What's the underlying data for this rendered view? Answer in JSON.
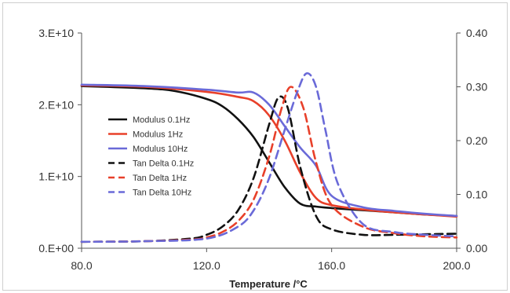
{
  "chart_data": {
    "type": "line",
    "title": "",
    "xlabel": "Temperature /°C",
    "ylabel": "",
    "y2label": "",
    "xlim": [
      80,
      200
    ],
    "ylim": [
      0,
      30000000000
    ],
    "y2lim": [
      0,
      0.4
    ],
    "grid": false,
    "legend_position": "center-left",
    "x_ticks": [
      {
        "value": 80,
        "label": "80.0"
      },
      {
        "value": 120,
        "label": "120.0"
      },
      {
        "value": 160,
        "label": "160.0"
      },
      {
        "value": 200,
        "label": "200.0"
      }
    ],
    "y_ticks": [
      {
        "value": 0,
        "label": "0.E+00"
      },
      {
        "value": 10000000000,
        "label": "1.E+10"
      },
      {
        "value": 20000000000,
        "label": "2.E+10"
      },
      {
        "value": 30000000000,
        "label": "3.E+10"
      }
    ],
    "y2_ticks": [
      {
        "value": 0,
        "label": "0.00"
      },
      {
        "value": 0.1,
        "label": "0.10"
      },
      {
        "value": 0.2,
        "label": "0.20"
      },
      {
        "value": 0.3,
        "label": "0.30"
      },
      {
        "value": 0.4,
        "label": "0.40"
      }
    ],
    "series": [
      {
        "name": "Modulus 0.1Hz",
        "axis": "left",
        "color": "#111111",
        "dashed": false,
        "x": [
          80,
          100,
          110,
          120,
          125,
          130,
          135,
          140,
          145,
          150,
          155,
          160,
          170,
          180,
          190,
          200
        ],
        "y": [
          22600000000,
          22300000000,
          21900000000,
          20800000000,
          19800000000,
          18000000000,
          15500000000,
          12000000000,
          8500000000,
          6200000000,
          5800000000,
          5600000000,
          5300000000,
          5000000000,
          4700000000,
          4500000000
        ]
      },
      {
        "name": "Modulus 1Hz",
        "axis": "left",
        "color": "#e8402a",
        "dashed": false,
        "x": [
          80,
          100,
          120,
          130,
          135,
          140,
          145,
          150,
          155,
          160,
          170,
          180,
          190,
          200
        ],
        "y": [
          22700000000,
          22500000000,
          21800000000,
          21100000000,
          20500000000,
          18500000000,
          15000000000,
          10500000000,
          7000000000,
          6000000000,
          5400000000,
          5000000000,
          4700000000,
          4400000000
        ]
      },
      {
        "name": "Modulus 10Hz",
        "axis": "left",
        "color": "#6a6ad8",
        "dashed": false,
        "x": [
          80,
          100,
          120,
          130,
          135,
          140,
          145,
          150,
          155,
          160,
          170,
          180,
          190,
          200
        ],
        "y": [
          22800000000,
          22600000000,
          22100000000,
          21700000000,
          21700000000,
          20000000000,
          17000000000,
          14000000000,
          11500000000,
          7300000000,
          5700000000,
          5200000000,
          4800000000,
          4500000000
        ]
      },
      {
        "name": "Tan Delta 0.1Hz",
        "axis": "right",
        "color": "#111111",
        "dashed": true,
        "x": [
          80,
          100,
          115,
          120,
          125,
          130,
          135,
          140,
          143,
          146,
          150,
          155,
          160,
          170,
          180,
          190,
          200
        ],
        "y": [
          0.012,
          0.013,
          0.018,
          0.025,
          0.04,
          0.07,
          0.13,
          0.23,
          0.28,
          0.26,
          0.15,
          0.06,
          0.035,
          0.025,
          0.025,
          0.026,
          0.027
        ]
      },
      {
        "name": "Tan Delta 1Hz",
        "axis": "right",
        "color": "#e8402a",
        "dashed": true,
        "x": [
          80,
          100,
          115,
          120,
          125,
          130,
          135,
          140,
          144,
          147,
          151,
          155,
          160,
          170,
          180,
          190,
          200
        ],
        "y": [
          0.012,
          0.013,
          0.016,
          0.02,
          0.03,
          0.05,
          0.09,
          0.17,
          0.26,
          0.3,
          0.26,
          0.16,
          0.08,
          0.04,
          0.028,
          0.022,
          0.02
        ]
      },
      {
        "name": "Tan Delta 10Hz",
        "axis": "right",
        "color": "#6a6ad8",
        "dashed": true,
        "x": [
          80,
          100,
          120,
          130,
          135,
          140,
          145,
          149,
          152,
          155,
          158,
          162,
          170,
          180,
          190,
          200
        ],
        "y": [
          0.012,
          0.013,
          0.018,
          0.04,
          0.07,
          0.13,
          0.22,
          0.29,
          0.325,
          0.3,
          0.22,
          0.12,
          0.045,
          0.03,
          0.025,
          0.022
        ]
      }
    ]
  }
}
